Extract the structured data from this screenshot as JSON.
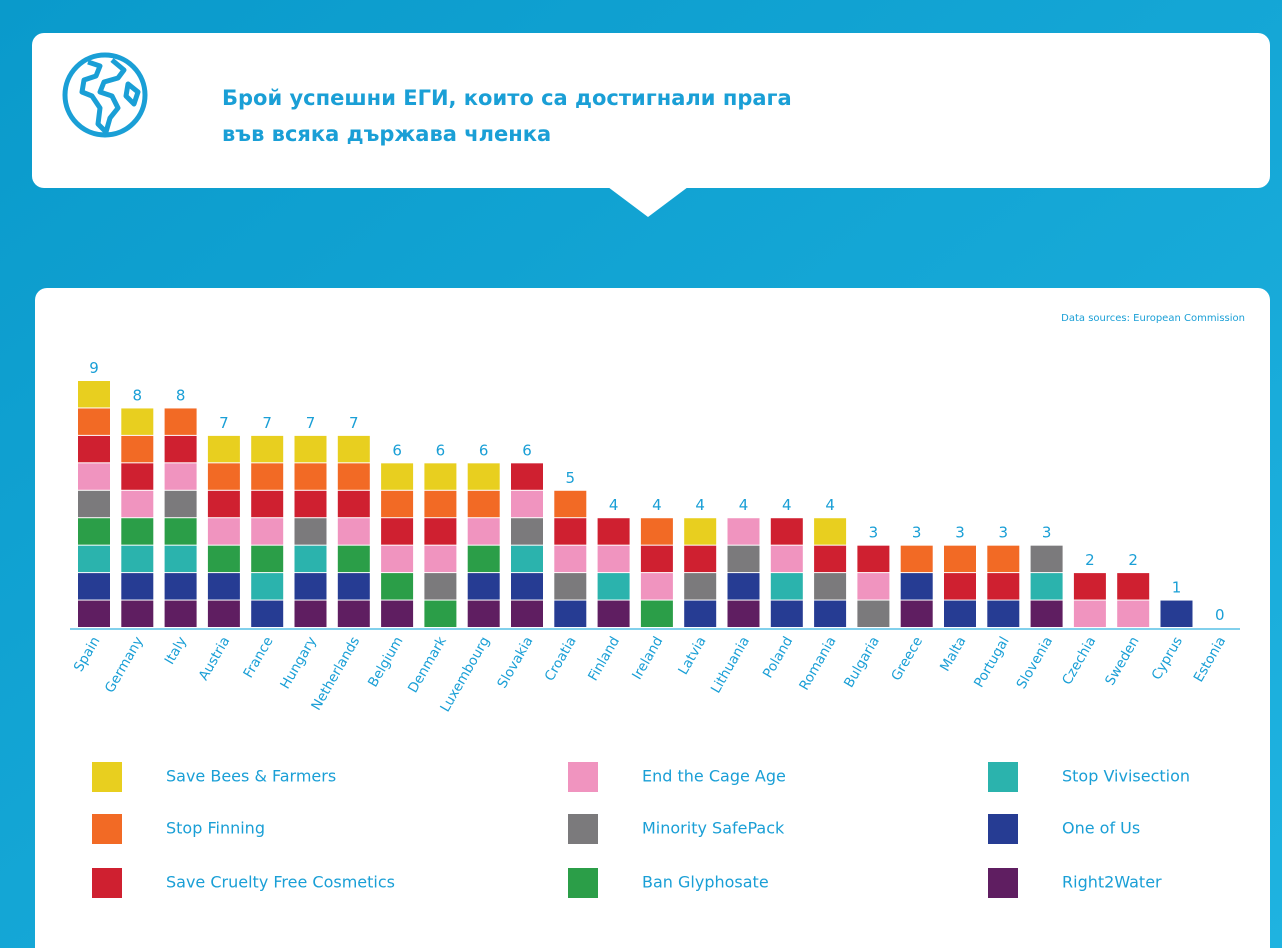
{
  "chart_data": {
    "type": "stacked_bar",
    "title_lines": [
      "Брой успешни ЕГИ, които са достигнали прага",
      "във всяка държава членка"
    ],
    "source": "Data sources: European Commission",
    "categories": [
      "Spain",
      "Germany",
      "Italy",
      "Austria",
      "France",
      "Hungary",
      "Netherlands",
      "Belgium",
      "Denmark",
      "Luxembourg",
      "Slovakia",
      "Croatia",
      "Finland",
      "Ireland",
      "Latvia",
      "Lithuania",
      "Poland",
      "Romania",
      "Bulgaria",
      "Greece",
      "Malta",
      "Portugal",
      "Slovenia",
      "Czechia",
      "Sweden",
      "Cyprus",
      "Estonia"
    ],
    "totals": [
      9,
      8,
      8,
      7,
      7,
      7,
      7,
      6,
      6,
      6,
      6,
      5,
      4,
      4,
      4,
      4,
      4,
      4,
      3,
      3,
      3,
      3,
      3,
      2,
      2,
      1,
      0
    ],
    "ylim": [
      0,
      9
    ],
    "series": [
      {
        "name": "Save Bees & Farmers",
        "color": "#e8cf1f",
        "values": [
          1,
          1,
          0,
          1,
          1,
          1,
          1,
          1,
          1,
          1,
          0,
          0,
          0,
          0,
          1,
          0,
          0,
          1,
          0,
          0,
          0,
          0,
          0,
          0,
          0,
          0,
          0
        ]
      },
      {
        "name": "Stop Finning",
        "color": "#f26a25",
        "values": [
          1,
          1,
          1,
          1,
          1,
          1,
          1,
          1,
          1,
          1,
          0,
          1,
          0,
          1,
          0,
          0,
          0,
          0,
          0,
          1,
          1,
          1,
          0,
          0,
          0,
          0,
          0
        ]
      },
      {
        "name": "Save Cruelty Free Cosmetics",
        "color": "#cf2030",
        "values": [
          1,
          1,
          1,
          1,
          1,
          1,
          1,
          1,
          1,
          0,
          1,
          1,
          1,
          1,
          1,
          0,
          1,
          1,
          1,
          0,
          1,
          1,
          0,
          1,
          1,
          0,
          0
        ]
      },
      {
        "name": "End the Cage Age",
        "color": "#f094bf",
        "values": [
          1,
          1,
          1,
          1,
          1,
          0,
          1,
          1,
          1,
          1,
          1,
          1,
          1,
          1,
          0,
          1,
          1,
          0,
          1,
          0,
          0,
          0,
          0,
          1,
          1,
          0,
          0
        ]
      },
      {
        "name": "Minority SafePack",
        "color": "#7b7a7c",
        "values": [
          1,
          0,
          1,
          0,
          0,
          1,
          0,
          0,
          1,
          0,
          1,
          1,
          0,
          0,
          1,
          1,
          0,
          1,
          1,
          0,
          0,
          0,
          1,
          0,
          0,
          0,
          0
        ]
      },
      {
        "name": "Ban Glyphosate",
        "color": "#2b9e48",
        "values": [
          1,
          1,
          1,
          1,
          1,
          0,
          1,
          1,
          1,
          1,
          0,
          0,
          0,
          1,
          0,
          0,
          0,
          0,
          0,
          0,
          0,
          0,
          0,
          0,
          0,
          0,
          0
        ]
      },
      {
        "name": "Stop Vivisection",
        "color": "#2bb3ad",
        "values": [
          1,
          1,
          1,
          0,
          1,
          1,
          0,
          0,
          0,
          0,
          1,
          0,
          1,
          0,
          0,
          0,
          1,
          0,
          0,
          0,
          0,
          0,
          1,
          0,
          0,
          0,
          0
        ]
      },
      {
        "name": "One of Us",
        "color": "#263c93",
        "values": [
          1,
          1,
          1,
          1,
          1,
          1,
          1,
          0,
          0,
          1,
          1,
          1,
          0,
          0,
          1,
          1,
          1,
          1,
          0,
          1,
          1,
          1,
          0,
          0,
          0,
          1,
          0
        ]
      },
      {
        "name": "Right2Water",
        "color": "#5f1e61",
        "values": [
          1,
          1,
          1,
          1,
          0,
          1,
          1,
          1,
          0,
          1,
          1,
          0,
          1,
          0,
          0,
          1,
          0,
          0,
          0,
          1,
          0,
          0,
          1,
          0,
          0,
          0,
          0
        ]
      }
    ]
  }
}
